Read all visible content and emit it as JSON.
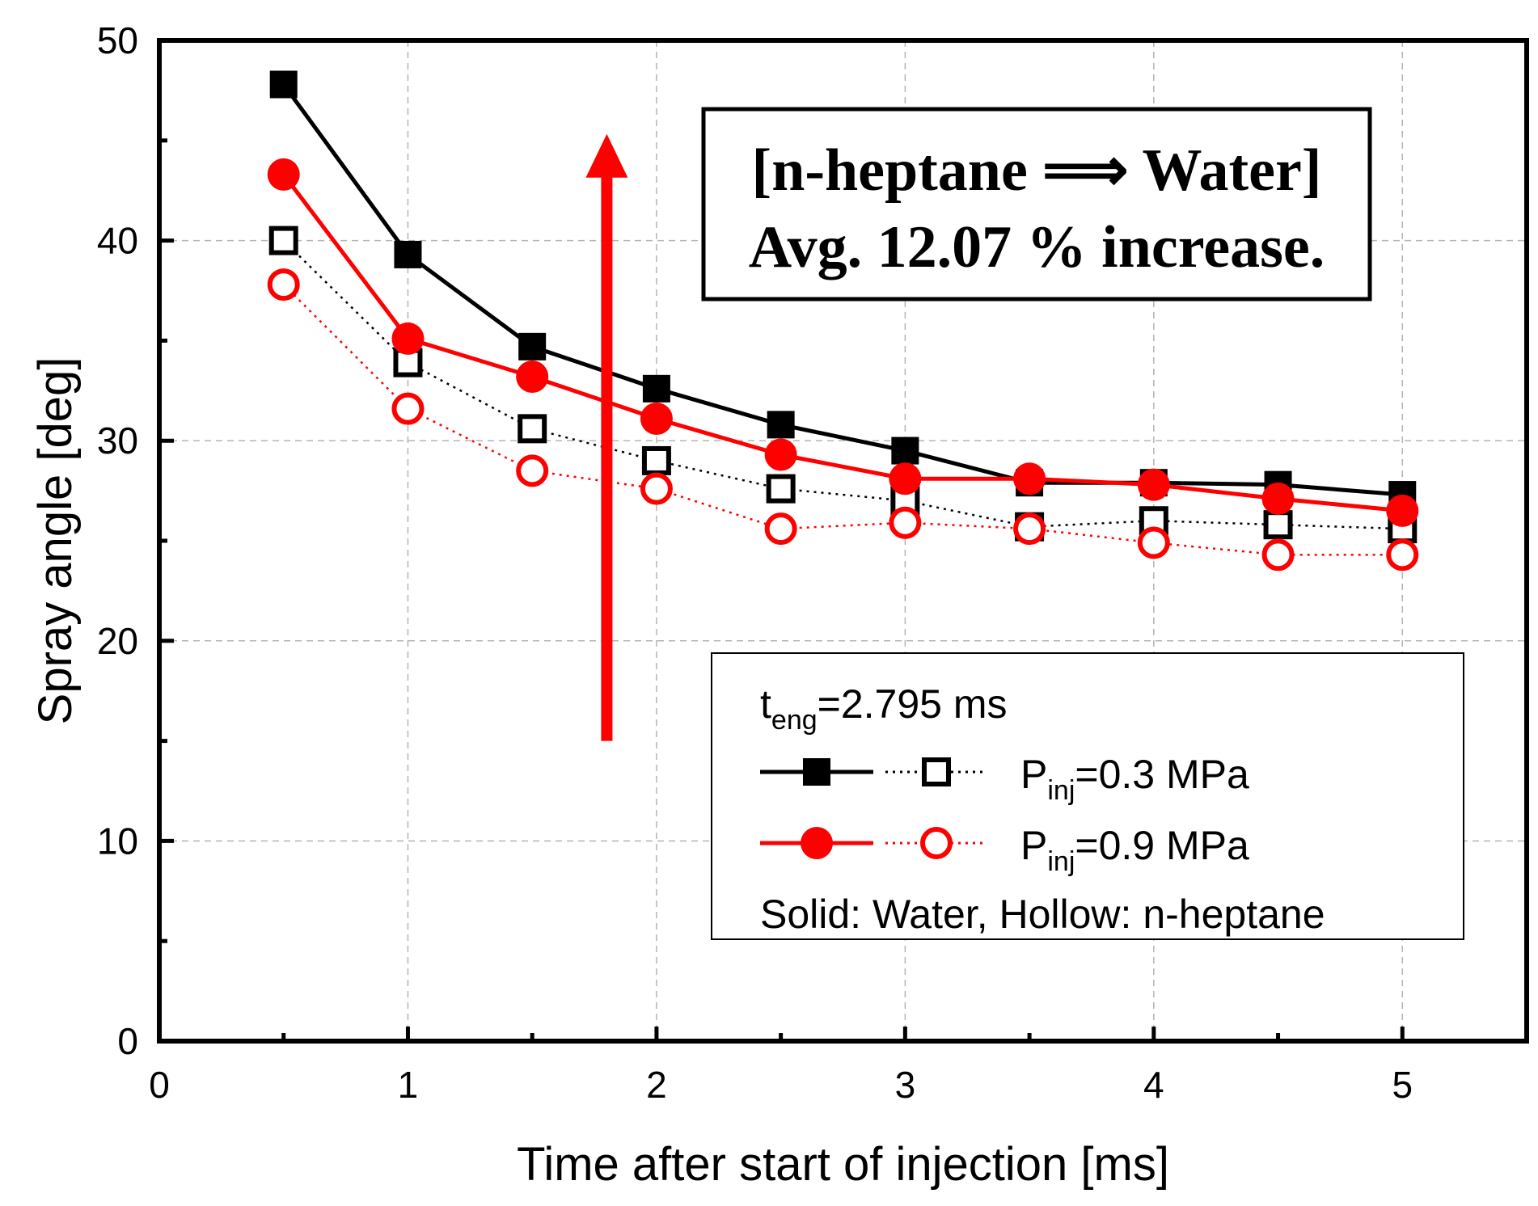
{
  "chart_data": {
    "type": "line",
    "title": "",
    "xlabel": "Time after start of injection [ms]",
    "ylabel": "Spray angle [deg]",
    "xlim": [
      0,
      5.5
    ],
    "ylim": [
      0,
      50
    ],
    "xticks": [
      0,
      1,
      2,
      3,
      4,
      5
    ],
    "yticks": [
      0,
      10,
      20,
      30,
      40,
      50
    ],
    "grid": true,
    "x": [
      0.5,
      1.0,
      1.5,
      2.0,
      2.5,
      3.0,
      3.5,
      4.0,
      4.5,
      5.0
    ],
    "series": [
      {
        "name": "Water, Pinj=0.3 MPa",
        "fluid": "Water",
        "pressure": "0.3 MPa",
        "color": "#000000",
        "marker": "square",
        "filled": true,
        "line": "solid",
        "values": [
          47.8,
          39.3,
          34.7,
          32.6,
          30.8,
          29.5,
          27.9,
          27.9,
          27.8,
          27.3
        ]
      },
      {
        "name": "n-heptane, Pinj=0.3 MPa",
        "fluid": "n-heptane",
        "pressure": "0.3 MPa",
        "color": "#000000",
        "marker": "square",
        "filled": false,
        "line": "dotted",
        "values": [
          40.0,
          33.9,
          30.6,
          29.0,
          27.6,
          27.0,
          25.7,
          26.0,
          25.8,
          25.6
        ]
      },
      {
        "name": "Water, Pinj=0.9 MPa",
        "fluid": "Water",
        "pressure": "0.9 MPa",
        "color": "#ff0000",
        "marker": "circle",
        "filled": true,
        "line": "solid",
        "values": [
          43.3,
          35.1,
          33.2,
          31.1,
          29.3,
          28.1,
          28.1,
          27.8,
          27.1,
          26.5
        ]
      },
      {
        "name": "n-heptane, Pinj=0.9 MPa",
        "fluid": "n-heptane",
        "pressure": "0.9 MPa",
        "color": "#ff0000",
        "marker": "circle",
        "filled": false,
        "line": "dotted",
        "values": [
          37.8,
          31.6,
          28.5,
          27.6,
          25.6,
          25.9,
          25.6,
          24.9,
          24.3,
          24.3
        ]
      }
    ],
    "annotation": {
      "line1": "[n-heptane ⟹ Water]",
      "line2": "Avg. 12.07 % increase.",
      "arrow": {
        "x": 1.8,
        "y_from": 15,
        "y_to": 45,
        "color": "#ff0000"
      }
    },
    "legend": {
      "position": "lower-right",
      "title_main": "t",
      "title_sub": "eng",
      "title_rest": "=2.795 ms",
      "entries": [
        {
          "main": "P",
          "sub": "inj",
          "rest": "=0.3 MPa",
          "color": "#000000",
          "marker": "square"
        },
        {
          "main": "P",
          "sub": "inj",
          "rest": "=0.9 MPa",
          "color": "#ff0000",
          "marker": "circle"
        }
      ],
      "footnote": "Solid: Water, Hollow: n-heptane"
    }
  }
}
